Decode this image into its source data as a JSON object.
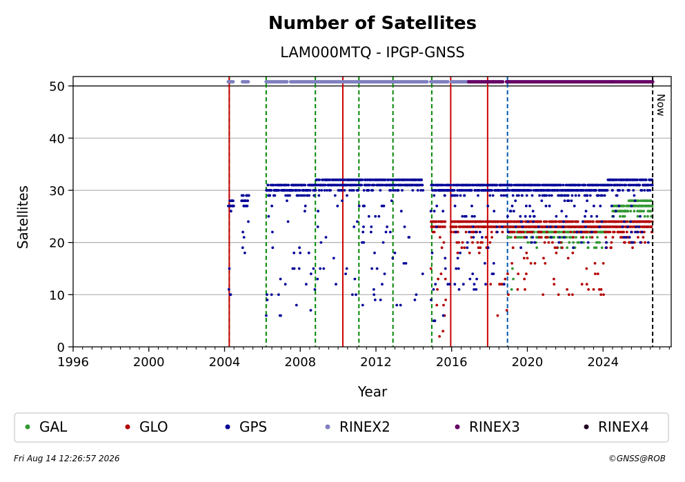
{
  "chart_data": {
    "type": "scatter",
    "title": "Number of Satellites",
    "subtitle": "LAM000MTQ - IPGP-GNSS",
    "xlabel": "Year",
    "ylabel": "Satellites",
    "xlim": [
      1996,
      2027.6
    ],
    "ylim": [
      0,
      51.8
    ],
    "xticks": [
      1996,
      2000,
      2004,
      2008,
      2012,
      2016,
      2020,
      2024
    ],
    "xtick_labels": [
      "1996",
      "2000",
      "2004",
      "2008",
      "2012",
      "2016",
      "2020",
      "2024"
    ],
    "yticks": [
      0,
      10,
      20,
      30,
      40,
      50
    ],
    "ytick_labels": [
      "0",
      "10",
      "20",
      "30",
      "40",
      "50"
    ],
    "grid": "horizontal",
    "now_label": "Now",
    "now_x": 2026.62,
    "format_line_y": 50,
    "colors": {
      "GAL": "#339933",
      "GLO": "#b30000",
      "GPS": "#000099",
      "RINEX2": "#8080c0",
      "RINEX3": "#660066",
      "RINEX4": "#220022",
      "event_green": "#008800",
      "event_red": "#cc0000",
      "event_blue": "#0055aa"
    },
    "events": [
      {
        "x": 2004.25,
        "type": "green-dashed"
      },
      {
        "x": 2004.25,
        "type": "red-solid"
      },
      {
        "x": 2006.2,
        "type": "green-dashed"
      },
      {
        "x": 2008.8,
        "type": "green-dashed"
      },
      {
        "x": 2010.25,
        "type": "red-solid"
      },
      {
        "x": 2011.1,
        "type": "green-dashed"
      },
      {
        "x": 2012.9,
        "type": "green-dashed"
      },
      {
        "x": 2014.95,
        "type": "green-dashed"
      },
      {
        "x": 2015.95,
        "type": "red-solid"
      },
      {
        "x": 2017.9,
        "type": "red-solid"
      },
      {
        "x": 2018.95,
        "type": "blue-dashed"
      }
    ],
    "series": [
      {
        "name": "GAL",
        "segments": [
          {
            "from": 2018.95,
            "to": 2019.3,
            "min": 8,
            "max": 23
          },
          {
            "from": 2019.3,
            "to": 2024.2,
            "min": 19,
            "max": 23
          },
          {
            "from": 2024.5,
            "to": 2025.3,
            "min": 23,
            "max": 27
          },
          {
            "from": 2025.3,
            "to": 2026.62,
            "min": 23,
            "max": 28
          }
        ]
      },
      {
        "name": "GLO",
        "segments": [
          {
            "from": 2014.9,
            "to": 2015.7,
            "min": 1,
            "max": 24
          },
          {
            "from": 2015.95,
            "to": 2017.9,
            "min": 18,
            "max": 24
          },
          {
            "from": 2017.9,
            "to": 2019.0,
            "min": 6,
            "max": 24
          },
          {
            "from": 2019.0,
            "to": 2024.2,
            "min": 9,
            "max": 24
          },
          {
            "from": 2024.2,
            "to": 2026.62,
            "min": 19,
            "max": 24
          }
        ]
      },
      {
        "name": "GPS",
        "segments": [
          {
            "from": 2004.2,
            "to": 2004.5,
            "min": 9,
            "max": 28
          },
          {
            "from": 2004.9,
            "to": 2005.3,
            "min": 18,
            "max": 29
          },
          {
            "from": 2006.2,
            "to": 2008.8,
            "min": 6,
            "max": 31
          },
          {
            "from": 2008.8,
            "to": 2014.5,
            "min": 7,
            "max": 32
          },
          {
            "from": 2014.9,
            "to": 2015.9,
            "min": 4,
            "max": 31
          },
          {
            "from": 2015.95,
            "to": 2019.0,
            "min": 10,
            "max": 31
          },
          {
            "from": 2019.0,
            "to": 2024.2,
            "min": 19,
            "max": 31
          },
          {
            "from": 2024.2,
            "to": 2026.62,
            "min": 19,
            "max": 32
          }
        ]
      },
      {
        "name": "RINEX2",
        "segments": [
          {
            "from": 2004.2,
            "to": 2004.45,
            "min": 50.8,
            "max": 50.8
          },
          {
            "from": 2004.95,
            "to": 2005.25,
            "min": 50.8,
            "max": 50.8
          },
          {
            "from": 2006.2,
            "to": 2007.3,
            "min": 50.8,
            "max": 50.8
          },
          {
            "from": 2007.5,
            "to": 2014.7,
            "min": 50.8,
            "max": 50.8
          },
          {
            "from": 2014.9,
            "to": 2015.8,
            "min": 50.8,
            "max": 50.8
          },
          {
            "from": 2016.0,
            "to": 2016.9,
            "min": 50.8,
            "max": 50.8
          }
        ]
      },
      {
        "name": "RINEX3",
        "segments": [
          {
            "from": 2016.9,
            "to": 2018.7,
            "min": 50.8,
            "max": 50.8
          },
          {
            "from": 2018.9,
            "to": 2024.5,
            "min": 50.8,
            "max": 50.8
          },
          {
            "from": 2024.5,
            "to": 2026.62,
            "min": 50.8,
            "max": 50.8
          }
        ]
      },
      {
        "name": "RINEX4",
        "segments": []
      }
    ],
    "legend": {
      "placement": "bottom",
      "entries": [
        "GAL",
        "GLO",
        "GPS",
        "RINEX2",
        "RINEX3",
        "RINEX4"
      ]
    }
  },
  "footer": {
    "timestamp": "Fri Aug 14 12:26:57 2026",
    "credit": "©GNSS@ROB"
  }
}
